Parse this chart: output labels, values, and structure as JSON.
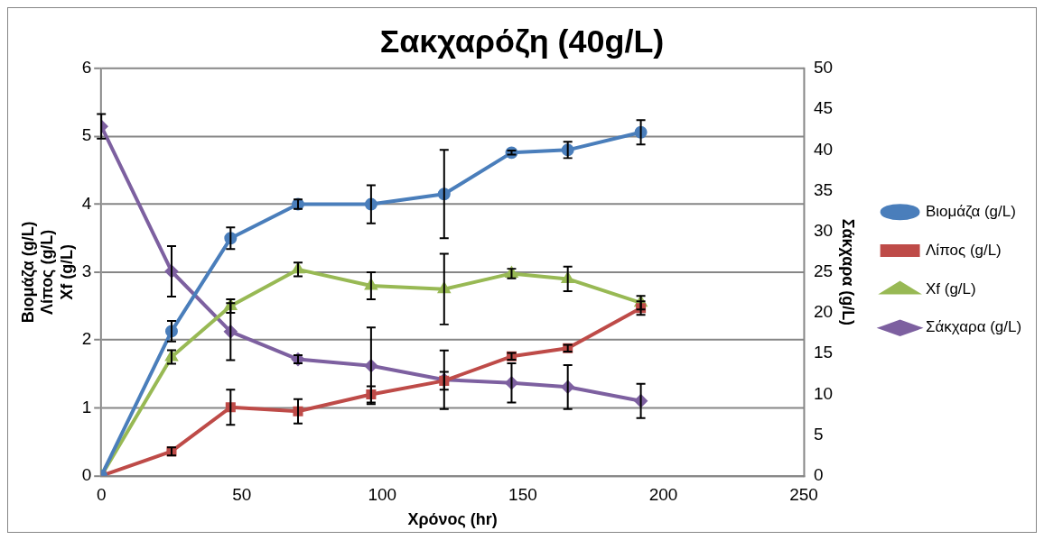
{
  "chart_data": {
    "type": "line",
    "title": "Σακχαρόζη (40g/L)",
    "xlabel": "Χρόνος (hr)",
    "ylabel": "Βιομάζα (g/L)\nΛίπος (g/L)\nXf (g/L)",
    "y2label": "Σάκχαρα (g/L)",
    "x": [
      0,
      25,
      46,
      70,
      96,
      122,
      146,
      166,
      192
    ],
    "xlim": [
      0,
      250
    ],
    "xticks": [
      0,
      50,
      100,
      150,
      200,
      250
    ],
    "ylim": [
      0,
      6
    ],
    "yticks": [
      0,
      1,
      2,
      3,
      4,
      5,
      6
    ],
    "y2lim": [
      0,
      50
    ],
    "y2ticks": [
      0,
      5,
      10,
      15,
      20,
      25,
      30,
      35,
      40,
      45,
      50
    ],
    "grid": "y",
    "legend": "right",
    "series": [
      {
        "name": "Βιομάζα (g/L)",
        "color": "#4a7ebb",
        "marker": "circle",
        "values": [
          0,
          2.13,
          3.5,
          4.0,
          4.0,
          4.15,
          4.76,
          4.8,
          5.06
        ],
        "errors": [
          null,
          0.15,
          0.16,
          0.07,
          0.28,
          0.65,
          0.03,
          0.12,
          0.18
        ]
      },
      {
        "name": "Λίπος (g/L)",
        "color": "#be4b48",
        "marker": "square",
        "values": [
          0,
          0.36,
          1.01,
          0.95,
          1.2,
          1.4,
          1.76,
          1.88,
          2.47
        ],
        "errors": [
          null,
          0.06,
          0.26,
          0.18,
          0.12,
          0.13,
          0.05,
          0.05,
          0.1
        ]
      },
      {
        "name": "Xf (g/L)",
        "color": "#98b954",
        "marker": "triangle",
        "values": [
          0,
          1.75,
          2.5,
          3.04,
          2.8,
          2.75,
          2.98,
          2.9,
          2.55
        ],
        "errors": [
          null,
          0.1,
          0.1,
          0.1,
          0.2,
          0.52,
          0.07,
          0.18,
          0.1
        ]
      },
      {
        "name": "Σάκχαρα (g/L)",
        "color": "#7d60a0",
        "marker": "diamond",
        "axis": "y2",
        "values": [
          42.9,
          25.1,
          17.7,
          14.3,
          13.5,
          11.8,
          11.4,
          10.9,
          9.2
        ],
        "errors": [
          1.5,
          3.1,
          3.5,
          0.5,
          4.7,
          3.6,
          2.4,
          2.7,
          2.1
        ]
      }
    ]
  }
}
